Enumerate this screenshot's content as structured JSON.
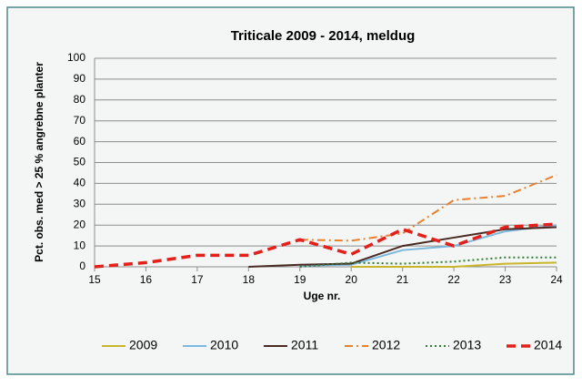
{
  "chart_data": {
    "type": "line",
    "title": "Triticale 2009 - 2014, meldug",
    "xlabel": "Uge nr.",
    "ylabel": "Pct. obs. med > 25 % angrebne planter",
    "x": [
      15,
      16,
      17,
      18,
      19,
      20,
      21,
      22,
      23,
      24
    ],
    "xlim": [
      15,
      24
    ],
    "xticks": [
      15,
      16,
      17,
      18,
      19,
      20,
      21,
      22,
      23,
      24
    ],
    "ylim": [
      0,
      100
    ],
    "yticks": [
      0,
      10,
      20,
      30,
      40,
      50,
      60,
      70,
      80,
      90,
      100
    ],
    "grid": true,
    "legend": "bottom",
    "series": [
      {
        "name": "2009",
        "color": "#c9b52a",
        "dash": "solid",
        "values": [
          null,
          null,
          null,
          null,
          null,
          0,
          0,
          0,
          1.5,
          2
        ]
      },
      {
        "name": "2010",
        "color": "#7db8de",
        "dash": "solid",
        "values": [
          null,
          null,
          null,
          null,
          0.5,
          1,
          8,
          10,
          17,
          20
        ]
      },
      {
        "name": "2011",
        "color": "#4b2a24",
        "dash": "solid",
        "values": [
          null,
          null,
          null,
          0,
          1,
          1.5,
          10,
          14,
          18,
          19
        ]
      },
      {
        "name": "2012",
        "color": "#e8802e",
        "dash": "dashdot",
        "values": [
          null,
          null,
          null,
          null,
          13,
          12.5,
          16,
          32,
          34,
          44
        ]
      },
      {
        "name": "2013",
        "color": "#2f7d33",
        "dash": "dotted",
        "values": [
          null,
          null,
          null,
          null,
          0,
          2,
          1.5,
          2.5,
          4.5,
          4.5
        ]
      },
      {
        "name": "2014",
        "color": "#e3201b",
        "dash": "dashed",
        "values": [
          0,
          2,
          5.5,
          5.5,
          13,
          6,
          18,
          10,
          19,
          20.5
        ]
      }
    ]
  }
}
